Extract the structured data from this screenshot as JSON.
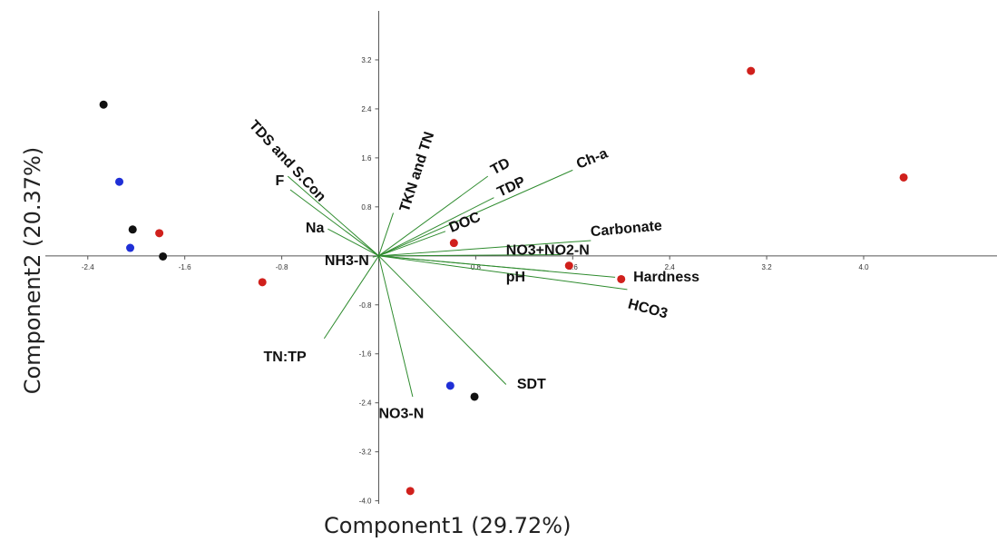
{
  "chart_data": {
    "type": "scatter",
    "subtype": "pca-biplot",
    "xlabel": "Component1 (29.72%)",
    "ylabel": "Component2 (20.37%)",
    "xlim": [
      -2.75,
      5.1
    ],
    "ylim": [
      -4.05,
      4.0
    ],
    "xticks": [
      -2.4,
      -1.6,
      -0.8,
      0.8,
      1.6,
      2.4,
      3.2,
      4.0
    ],
    "xtick_labels": [
      "-2.4",
      "-1.6",
      "-0.8",
      "0.8",
      "1.6",
      "2.4",
      "3.2",
      "4.0"
    ],
    "yticks": [
      3.2,
      2.4,
      1.6,
      0.8,
      -0.8,
      -1.6,
      -2.4,
      -3.2,
      -4.0
    ],
    "ytick_labels": [
      "3.2",
      "2.4",
      "1.6",
      "0.8",
      "-0.8",
      "-1.6",
      "-2.4",
      "-3.2",
      "-4.0"
    ],
    "grid": false,
    "legend": "none",
    "colors": {
      "axis": "#555555",
      "loading": "#2e8b2e",
      "red": "#d0201c",
      "blue": "#1f2fd6",
      "black": "#111111",
      "label": "#111111"
    },
    "points": [
      {
        "x": -2.27,
        "y": 2.47,
        "color": "black"
      },
      {
        "x": -2.14,
        "y": 1.21,
        "color": "blue"
      },
      {
        "x": -2.03,
        "y": 0.43,
        "color": "black"
      },
      {
        "x": -2.05,
        "y": 0.13,
        "color": "blue"
      },
      {
        "x": -1.78,
        "y": -0.01,
        "color": "black"
      },
      {
        "x": -1.81,
        "y": 0.37,
        "color": "red"
      },
      {
        "x": -0.96,
        "y": -0.43,
        "color": "red"
      },
      {
        "x": 0.62,
        "y": 0.21,
        "color": "red"
      },
      {
        "x": 1.57,
        "y": -0.16,
        "color": "red"
      },
      {
        "x": 2.0,
        "y": -0.38,
        "color": "red"
      },
      {
        "x": 0.59,
        "y": -2.12,
        "color": "blue"
      },
      {
        "x": 0.79,
        "y": -2.3,
        "color": "black"
      },
      {
        "x": 0.26,
        "y": -3.84,
        "color": "red"
      },
      {
        "x": 3.07,
        "y": 3.02,
        "color": "red"
      },
      {
        "x": 4.33,
        "y": 1.28,
        "color": "red"
      }
    ],
    "loadings": [
      {
        "name": "TDS and S.Con",
        "x": -0.75,
        "y": 1.3,
        "lx": -0.78,
        "ly": 1.5,
        "rot": 47,
        "anchor": "middle"
      },
      {
        "name": "F",
        "x": -0.73,
        "y": 1.08,
        "lx": -0.78,
        "ly": 1.15,
        "rot": 0,
        "anchor": "end"
      },
      {
        "name": "Na",
        "x": -0.42,
        "y": 0.44,
        "lx": -0.45,
        "ly": 0.38,
        "rot": 0,
        "anchor": "end"
      },
      {
        "name": "NH3-N",
        "x": -0.05,
        "y": -0.02,
        "lx": -0.08,
        "ly": -0.15,
        "rot": 0,
        "anchor": "end"
      },
      {
        "name": "TKN and TN",
        "x": 0.12,
        "y": 0.7,
        "lx": 0.35,
        "ly": 1.35,
        "rot": -72,
        "anchor": "middle"
      },
      {
        "name": "TD",
        "x": 0.9,
        "y": 1.3,
        "lx": 0.95,
        "ly": 1.32,
        "rot": -28,
        "anchor": "start"
      },
      {
        "name": "TDP",
        "x": 0.95,
        "y": 0.95,
        "lx": 1.0,
        "ly": 0.96,
        "rot": -25,
        "anchor": "start"
      },
      {
        "name": "Ch-a",
        "x": 1.6,
        "y": 1.4,
        "lx": 1.65,
        "ly": 1.42,
        "rot": -22,
        "anchor": "start"
      },
      {
        "name": "DOC",
        "x": 0.55,
        "y": 0.4,
        "lx": 0.6,
        "ly": 0.38,
        "rot": -22,
        "anchor": "start"
      },
      {
        "name": "Carbonate",
        "x": 1.75,
        "y": 0.25,
        "lx": 1.75,
        "ly": 0.32,
        "rot": -5,
        "anchor": "start"
      },
      {
        "name": "NO3+NO2-N",
        "x": 1.5,
        "y": 0.02,
        "lx": 1.05,
        "ly": 0.02,
        "rot": 0,
        "anchor": "start"
      },
      {
        "name": "pH",
        "x": 1.4,
        "y": -0.25,
        "lx": 1.05,
        "ly": -0.42,
        "rot": 0,
        "anchor": "start"
      },
      {
        "name": "Hardness",
        "x": 1.95,
        "y": -0.35,
        "lx": 2.1,
        "ly": -0.42,
        "rot": 0,
        "anchor": "start"
      },
      {
        "name": "HCO3",
        "x": 2.05,
        "y": -0.55,
        "lx": 2.05,
        "ly": -0.85,
        "rot": 15,
        "anchor": "start"
      },
      {
        "name": "TN:TP",
        "x": -0.45,
        "y": -1.35,
        "lx": -0.95,
        "ly": -1.72,
        "rot": 0,
        "anchor": "start"
      },
      {
        "name": "NO3-N",
        "x": 0.28,
        "y": -2.3,
        "lx": 0.0,
        "ly": -2.65,
        "rot": 0,
        "anchor": "start"
      },
      {
        "name": "SDT",
        "x": 1.05,
        "y": -2.1,
        "lx": 1.14,
        "ly": -2.17,
        "rot": 0,
        "anchor": "start"
      }
    ]
  }
}
